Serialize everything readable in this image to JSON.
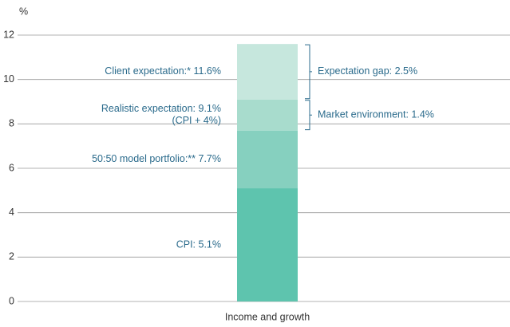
{
  "chart_data": {
    "type": "stacked_bar",
    "y_unit": "%",
    "categories": [
      "Income and growth"
    ],
    "ylim": [
      0,
      12
    ],
    "yticks": [
      0,
      2,
      4,
      6,
      8,
      10,
      12
    ],
    "grid": true,
    "series": [
      {
        "labels": [
          "CPI: 5.1%"
        ],
        "color": "#5ec4ae",
        "values": [
          5.1
        ]
      },
      {
        "labels": [
          "50:50 model portfolio:** 7.7%"
        ],
        "color": "#86d0bf",
        "values": [
          2.6
        ]
      },
      {
        "labels": [
          "Realistic expectation: 9.1%",
          "(CPI + 4%)"
        ],
        "bracket": "Market environment: 1.4%",
        "color": "#a8dccd",
        "values": [
          1.4
        ]
      },
      {
        "labels": [
          "Client expectation:* 11.6%"
        ],
        "bracket": "Expectation gap: 2.5%",
        "color": "#c6e7dd",
        "values": [
          2.5
        ]
      }
    ]
  }
}
